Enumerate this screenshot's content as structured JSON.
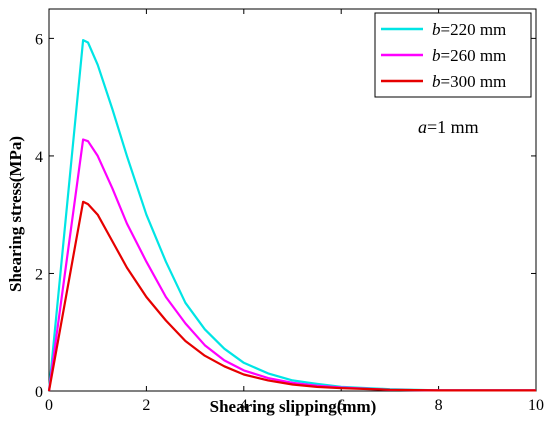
{
  "chart_data": {
    "type": "line",
    "xlabel": "Shearing slipping(mm)",
    "ylabel": "Shearing stress(MPa)",
    "xlim": [
      0,
      10
    ],
    "ylim": [
      0,
      6.5
    ],
    "xticks": [
      0,
      2,
      4,
      6,
      8,
      10
    ],
    "yticks": [
      0,
      2,
      4,
      6
    ],
    "grid": false,
    "legend_position": "top-right",
    "annotation": {
      "italic": "a",
      "text": "=1 mm"
    },
    "series": [
      {
        "name": "b=220 mm",
        "legend_italic": "b",
        "legend_rest": "=220 mm",
        "color": "#00e5e5",
        "points": [
          [
            0,
            0
          ],
          [
            0.7,
            5.97
          ],
          [
            0.8,
            5.93
          ],
          [
            1.0,
            5.55
          ],
          [
            1.3,
            4.8
          ],
          [
            1.6,
            4.0
          ],
          [
            2.0,
            3.0
          ],
          [
            2.4,
            2.2
          ],
          [
            2.8,
            1.5
          ],
          [
            3.2,
            1.05
          ],
          [
            3.6,
            0.72
          ],
          [
            4.0,
            0.48
          ],
          [
            4.5,
            0.3
          ],
          [
            5.0,
            0.18
          ],
          [
            5.5,
            0.12
          ],
          [
            6.0,
            0.07
          ],
          [
            7.0,
            0.03
          ],
          [
            8.0,
            0.01
          ],
          [
            10.0,
            0.01
          ]
        ]
      },
      {
        "name": "b=260 mm",
        "legend_italic": "b",
        "legend_rest": "=260 mm",
        "color": "#ff00ff",
        "points": [
          [
            0,
            0
          ],
          [
            0.7,
            4.28
          ],
          [
            0.8,
            4.25
          ],
          [
            1.0,
            4.0
          ],
          [
            1.3,
            3.45
          ],
          [
            1.6,
            2.85
          ],
          [
            2.0,
            2.2
          ],
          [
            2.4,
            1.6
          ],
          [
            2.8,
            1.15
          ],
          [
            3.2,
            0.78
          ],
          [
            3.6,
            0.52
          ],
          [
            4.0,
            0.35
          ],
          [
            4.5,
            0.22
          ],
          [
            5.0,
            0.14
          ],
          [
            5.5,
            0.09
          ],
          [
            6.0,
            0.06
          ],
          [
            7.0,
            0.02
          ],
          [
            8.0,
            0.01
          ],
          [
            10.0,
            0.01
          ]
        ]
      },
      {
        "name": "b=300 mm",
        "legend_italic": "b",
        "legend_rest": "=300 mm",
        "color": "#e60000",
        "points": [
          [
            0,
            0
          ],
          [
            0.7,
            3.22
          ],
          [
            0.8,
            3.18
          ],
          [
            1.0,
            3.0
          ],
          [
            1.3,
            2.55
          ],
          [
            1.6,
            2.1
          ],
          [
            2.0,
            1.6
          ],
          [
            2.4,
            1.2
          ],
          [
            2.8,
            0.85
          ],
          [
            3.2,
            0.6
          ],
          [
            3.6,
            0.42
          ],
          [
            4.0,
            0.28
          ],
          [
            4.5,
            0.18
          ],
          [
            5.0,
            0.11
          ],
          [
            5.5,
            0.07
          ],
          [
            6.0,
            0.05
          ],
          [
            7.0,
            0.02
          ],
          [
            8.0,
            0.01
          ],
          [
            10.0,
            0.01
          ]
        ]
      }
    ]
  }
}
